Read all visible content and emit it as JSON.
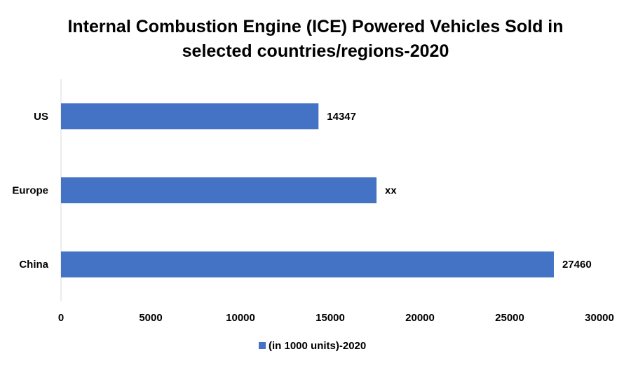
{
  "chart_data": {
    "type": "bar",
    "orientation": "horizontal",
    "title_lines": [
      "Internal Combustion Engine (ICE) Powered Vehicles Sold in",
      "selected countries/regions-2020"
    ],
    "categories": [
      "US",
      "Europe",
      "China"
    ],
    "series": [
      {
        "name": "(in 1000 units)-2020",
        "values": [
          14347,
          17580,
          27460
        ],
        "data_labels": [
          "14347",
          "xx",
          "27460"
        ]
      }
    ],
    "xlim": [
      0,
      30000
    ],
    "xticks": [
      0,
      5000,
      10000,
      15000,
      20000,
      25000,
      30000
    ],
    "xtick_labels": [
      "0",
      "5000",
      "10000",
      "15000",
      "20000",
      "25000",
      "30000"
    ],
    "xlabel": "",
    "ylabel": "",
    "grid": false,
    "legend_position": "bottom",
    "colors": {
      "bar": "#4472C4",
      "axis": "#d9d9d9"
    }
  }
}
